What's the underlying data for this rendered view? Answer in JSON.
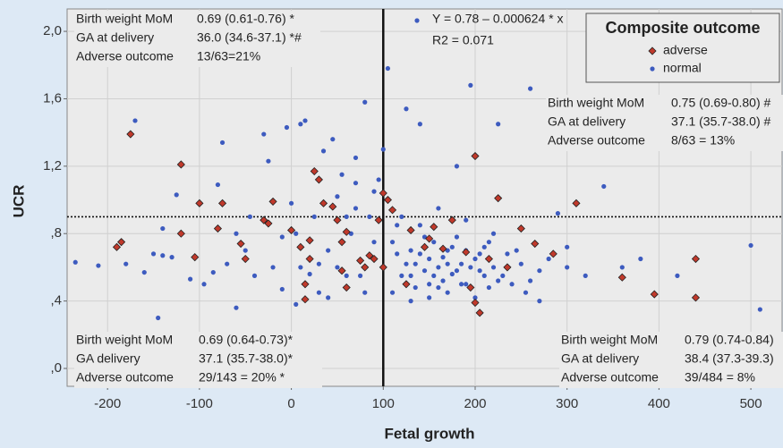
{
  "chart_data": {
    "type": "scatter",
    "xlabel": "Fetal growth",
    "ylabel": "UCR",
    "xlim": [
      -244,
      534
    ],
    "ylim": [
      -0.106,
      2.133
    ],
    "xticks": [
      -200,
      -100,
      0,
      100,
      200,
      300,
      400,
      500
    ],
    "yticks": [
      {
        "value": 0,
        "label": ",0"
      },
      {
        "value": 0.4,
        "label": ",4"
      },
      {
        "value": 0.8,
        "label": ",8"
      },
      {
        "value": 1.2,
        "label": "1,2"
      },
      {
        "value": 1.6,
        "label": "1,6"
      },
      {
        "value": 2.0,
        "label": "2,0"
      }
    ],
    "grid": true,
    "reference_lines": {
      "x": 100,
      "y": 0.9
    },
    "legend": {
      "title": "Composite outcome",
      "position": "top-right"
    },
    "regression": {
      "equation": "Y = 0.78 – 0.000624 * x",
      "r2": "R2 = 0.071",
      "color": "#3d5bbf"
    },
    "annotations": [
      {
        "rows": [
          [
            "Birth weight MoM",
            "0.69 (0.61-0.76) *"
          ],
          [
            "GA at delivery",
            "36.0 (34.6-37.1) *#"
          ],
          [
            "Adverse outcome",
            "13/63=21%"
          ]
        ]
      },
      {
        "rows": [
          [
            "Birth weight MoM",
            "0.75 (0.69-0.80) #"
          ],
          [
            "GA at delivery",
            "37.1 (35.7-38.0) #"
          ],
          [
            "Adverse outcome",
            "8/63 = 13%"
          ]
        ]
      },
      {
        "rows": [
          [
            "Birth weight MoM",
            "0.69 (0.64-0.73)*"
          ],
          [
            "GA delivery",
            "37.1 (35.7-38.0)*"
          ],
          [
            "Adverse outcome",
            "29/143 = 20% *"
          ]
        ]
      },
      {
        "rows": [
          [
            "Birth weight MoM",
            "0.79 (0.74-0.84)"
          ],
          [
            "GA at delivery",
            "38.4 (37.3-39.3)"
          ],
          [
            "Adverse outcome",
            "39/484 = 8%"
          ]
        ]
      }
    ],
    "series": [
      {
        "name": "adverse",
        "color": "#c0392b",
        "marker": "diamond",
        "x": [
          -175,
          -120,
          -100,
          -190,
          -185,
          -120,
          -105,
          -80,
          -75,
          -55,
          -50,
          -25,
          -20,
          -30,
          0,
          10,
          20,
          25,
          30,
          35,
          45,
          50,
          55,
          60,
          55,
          60,
          20,
          15,
          15,
          75,
          80,
          85,
          90,
          95,
          100,
          105,
          110,
          130,
          145,
          150,
          155,
          165,
          175,
          190,
          200,
          195,
          200,
          205,
          215,
          225,
          235,
          250,
          265,
          285,
          310,
          360,
          395,
          440,
          440,
          100,
          125
        ],
        "values": [
          1.39,
          1.21,
          0.98,
          0.72,
          0.75,
          0.8,
          0.66,
          0.83,
          0.98,
          0.74,
          0.65,
          0.86,
          0.99,
          0.88,
          0.82,
          0.72,
          0.76,
          1.17,
          1.12,
          0.98,
          0.96,
          0.88,
          0.75,
          0.81,
          0.58,
          0.48,
          0.65,
          0.5,
          0.41,
          0.64,
          0.6,
          0.67,
          0.65,
          0.88,
          1.04,
          1.0,
          0.94,
          0.82,
          0.72,
          0.77,
          0.84,
          0.71,
          0.88,
          0.69,
          1.26,
          0.48,
          0.39,
          0.33,
          0.65,
          1.01,
          0.6,
          0.83,
          0.74,
          0.68,
          0.98,
          0.54,
          0.44,
          0.65,
          0.42,
          0.6,
          0.5
        ]
      },
      {
        "name": "normal",
        "color": "#3d5bbf",
        "marker": "circle",
        "x": [
          -235,
          -210,
          -180,
          -170,
          -160,
          -150,
          -145,
          -140,
          -130,
          -125,
          -110,
          -95,
          -85,
          -80,
          -75,
          -70,
          -60,
          -50,
          -45,
          -40,
          -30,
          -25,
          -20,
          -10,
          -5,
          0,
          5,
          10,
          15,
          20,
          25,
          30,
          35,
          40,
          45,
          50,
          55,
          60,
          65,
          70,
          75,
          80,
          85,
          90,
          95,
          100,
          105,
          110,
          115,
          120,
          125,
          130,
          135,
          140,
          145,
          150,
          155,
          160,
          165,
          170,
          175,
          180,
          185,
          190,
          195,
          200,
          205,
          210,
          215,
          220,
          225,
          230,
          235,
          240,
          245,
          250,
          255,
          260,
          270,
          280,
          290,
          300,
          320,
          340,
          360,
          380,
          420,
          500,
          510,
          110,
          120,
          130,
          140,
          150,
          160,
          170,
          180,
          190,
          200,
          210,
          220,
          130,
          150,
          170,
          190,
          140,
          160,
          180,
          60,
          70,
          80,
          40,
          30,
          10,
          -10,
          -60,
          -140,
          270,
          300,
          260,
          5,
          115,
          125,
          135,
          145,
          155,
          165,
          175,
          185,
          195,
          205,
          215,
          225,
          100,
          90,
          70,
          50
        ],
        "values": [
          0.63,
          0.61,
          0.62,
          1.47,
          0.57,
          0.68,
          0.3,
          0.83,
          0.66,
          1.03,
          0.53,
          0.5,
          0.57,
          1.09,
          1.34,
          0.62,
          0.36,
          0.7,
          0.9,
          0.55,
          1.39,
          1.23,
          0.6,
          0.47,
          1.43,
          0.98,
          0.8,
          1.45,
          1.47,
          0.56,
          0.9,
          0.45,
          1.29,
          0.7,
          1.36,
          1.02,
          1.15,
          0.9,
          0.8,
          1.25,
          0.55,
          1.58,
          0.9,
          0.75,
          1.12,
          0.6,
          1.78,
          0.75,
          0.68,
          0.55,
          1.54,
          0.7,
          0.62,
          1.45,
          0.58,
          0.65,
          0.75,
          0.6,
          0.52,
          0.7,
          0.56,
          1.2,
          0.62,
          0.5,
          1.68,
          0.65,
          0.58,
          0.72,
          0.48,
          0.6,
          1.45,
          0.55,
          0.68,
          0.5,
          0.7,
          0.62,
          0.45,
          1.66,
          0.58,
          0.65,
          0.92,
          0.6,
          0.55,
          1.08,
          0.6,
          0.65,
          0.55,
          0.73,
          0.35,
          0.45,
          0.9,
          0.4,
          0.85,
          0.5,
          0.95,
          0.45,
          0.78,
          0.88,
          0.42,
          0.55,
          0.8,
          0.55,
          0.42,
          0.62,
          0.7,
          0.68,
          0.48,
          0.58,
          0.55,
          0.95,
          0.45,
          0.42,
          0.62,
          0.6,
          0.78,
          0.8,
          0.67,
          0.4,
          0.72,
          0.52,
          0.38,
          0.85,
          0.62,
          0.48,
          0.78,
          0.55,
          0.66,
          0.72,
          0.5,
          0.6,
          0.68,
          0.75,
          0.52,
          1.3,
          1.05,
          1.1,
          0.6
        ]
      }
    ]
  }
}
